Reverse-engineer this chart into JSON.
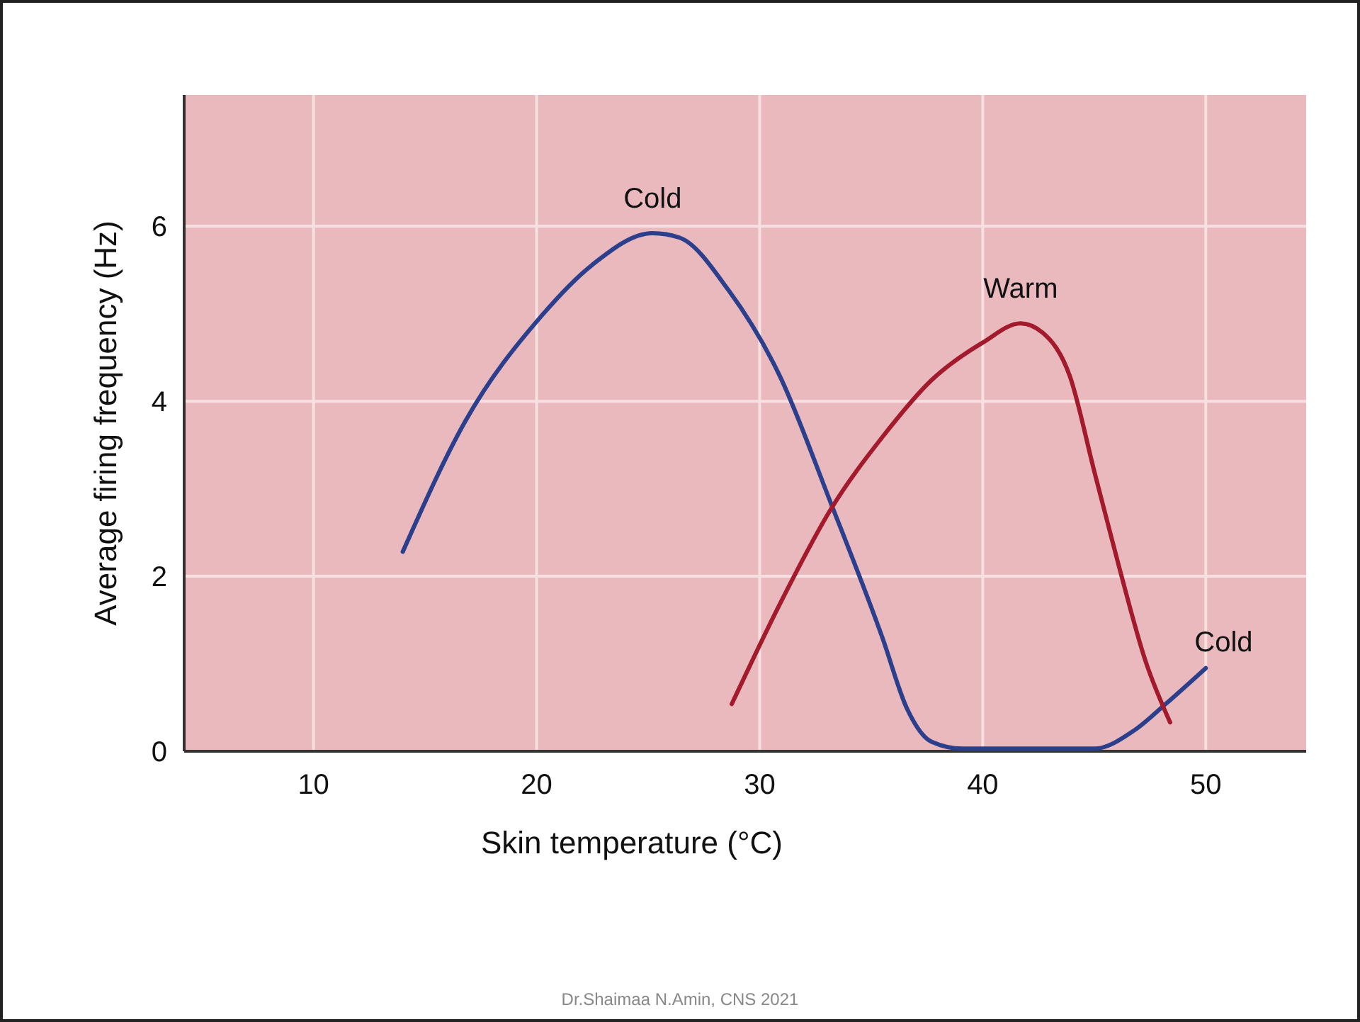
{
  "chart_data": {
    "type": "line",
    "xlabel": "Skin temperature (°C)",
    "ylabel": "Average firing frequency (Hz)",
    "series": [
      {
        "name": "Cold",
        "color": "#2b3f8c",
        "x": [
          14,
          16.8,
          20.2,
          22.5,
          25.2,
          26.4,
          28.6,
          30.9,
          33.2,
          35.5,
          36.6,
          37.7,
          39.1,
          45,
          46.8,
          48.2,
          50
        ],
        "values": [
          2.28,
          3.77,
          4.97,
          5.56,
          5.92,
          5.87,
          5.27,
          4.29,
          2.83,
          1.3,
          0.49,
          0.11,
          0.03,
          0.03,
          0.24,
          0.54,
          0.95
        ]
      },
      {
        "name": "Warm",
        "color": "#a31a2c",
        "x": [
          28.75,
          30.9,
          33.2,
          35.5,
          37.7,
          40,
          41.7,
          42.7,
          43.9,
          45,
          46.1,
          47.3,
          48.4
        ],
        "values": [
          0.54,
          1.68,
          2.77,
          3.59,
          4.24,
          4.67,
          4.89,
          4.78,
          4.29,
          3.2,
          2.12,
          1.03,
          0.33
        ]
      }
    ],
    "xlim": [
      4.2,
      54.5
    ],
    "xticks": [
      10,
      20,
      30,
      40,
      50
    ],
    "ylim": [
      0,
      7.5
    ],
    "yticks": [
      0,
      2,
      4,
      6
    ],
    "grid": true,
    "marker": "none",
    "line_style": "solid",
    "annotations": [
      {
        "text": "Cold",
        "x": 50,
        "y": 0.95
      },
      "Dr.Shaimaa N.Amin, CNS 2021"
    ]
  }
}
